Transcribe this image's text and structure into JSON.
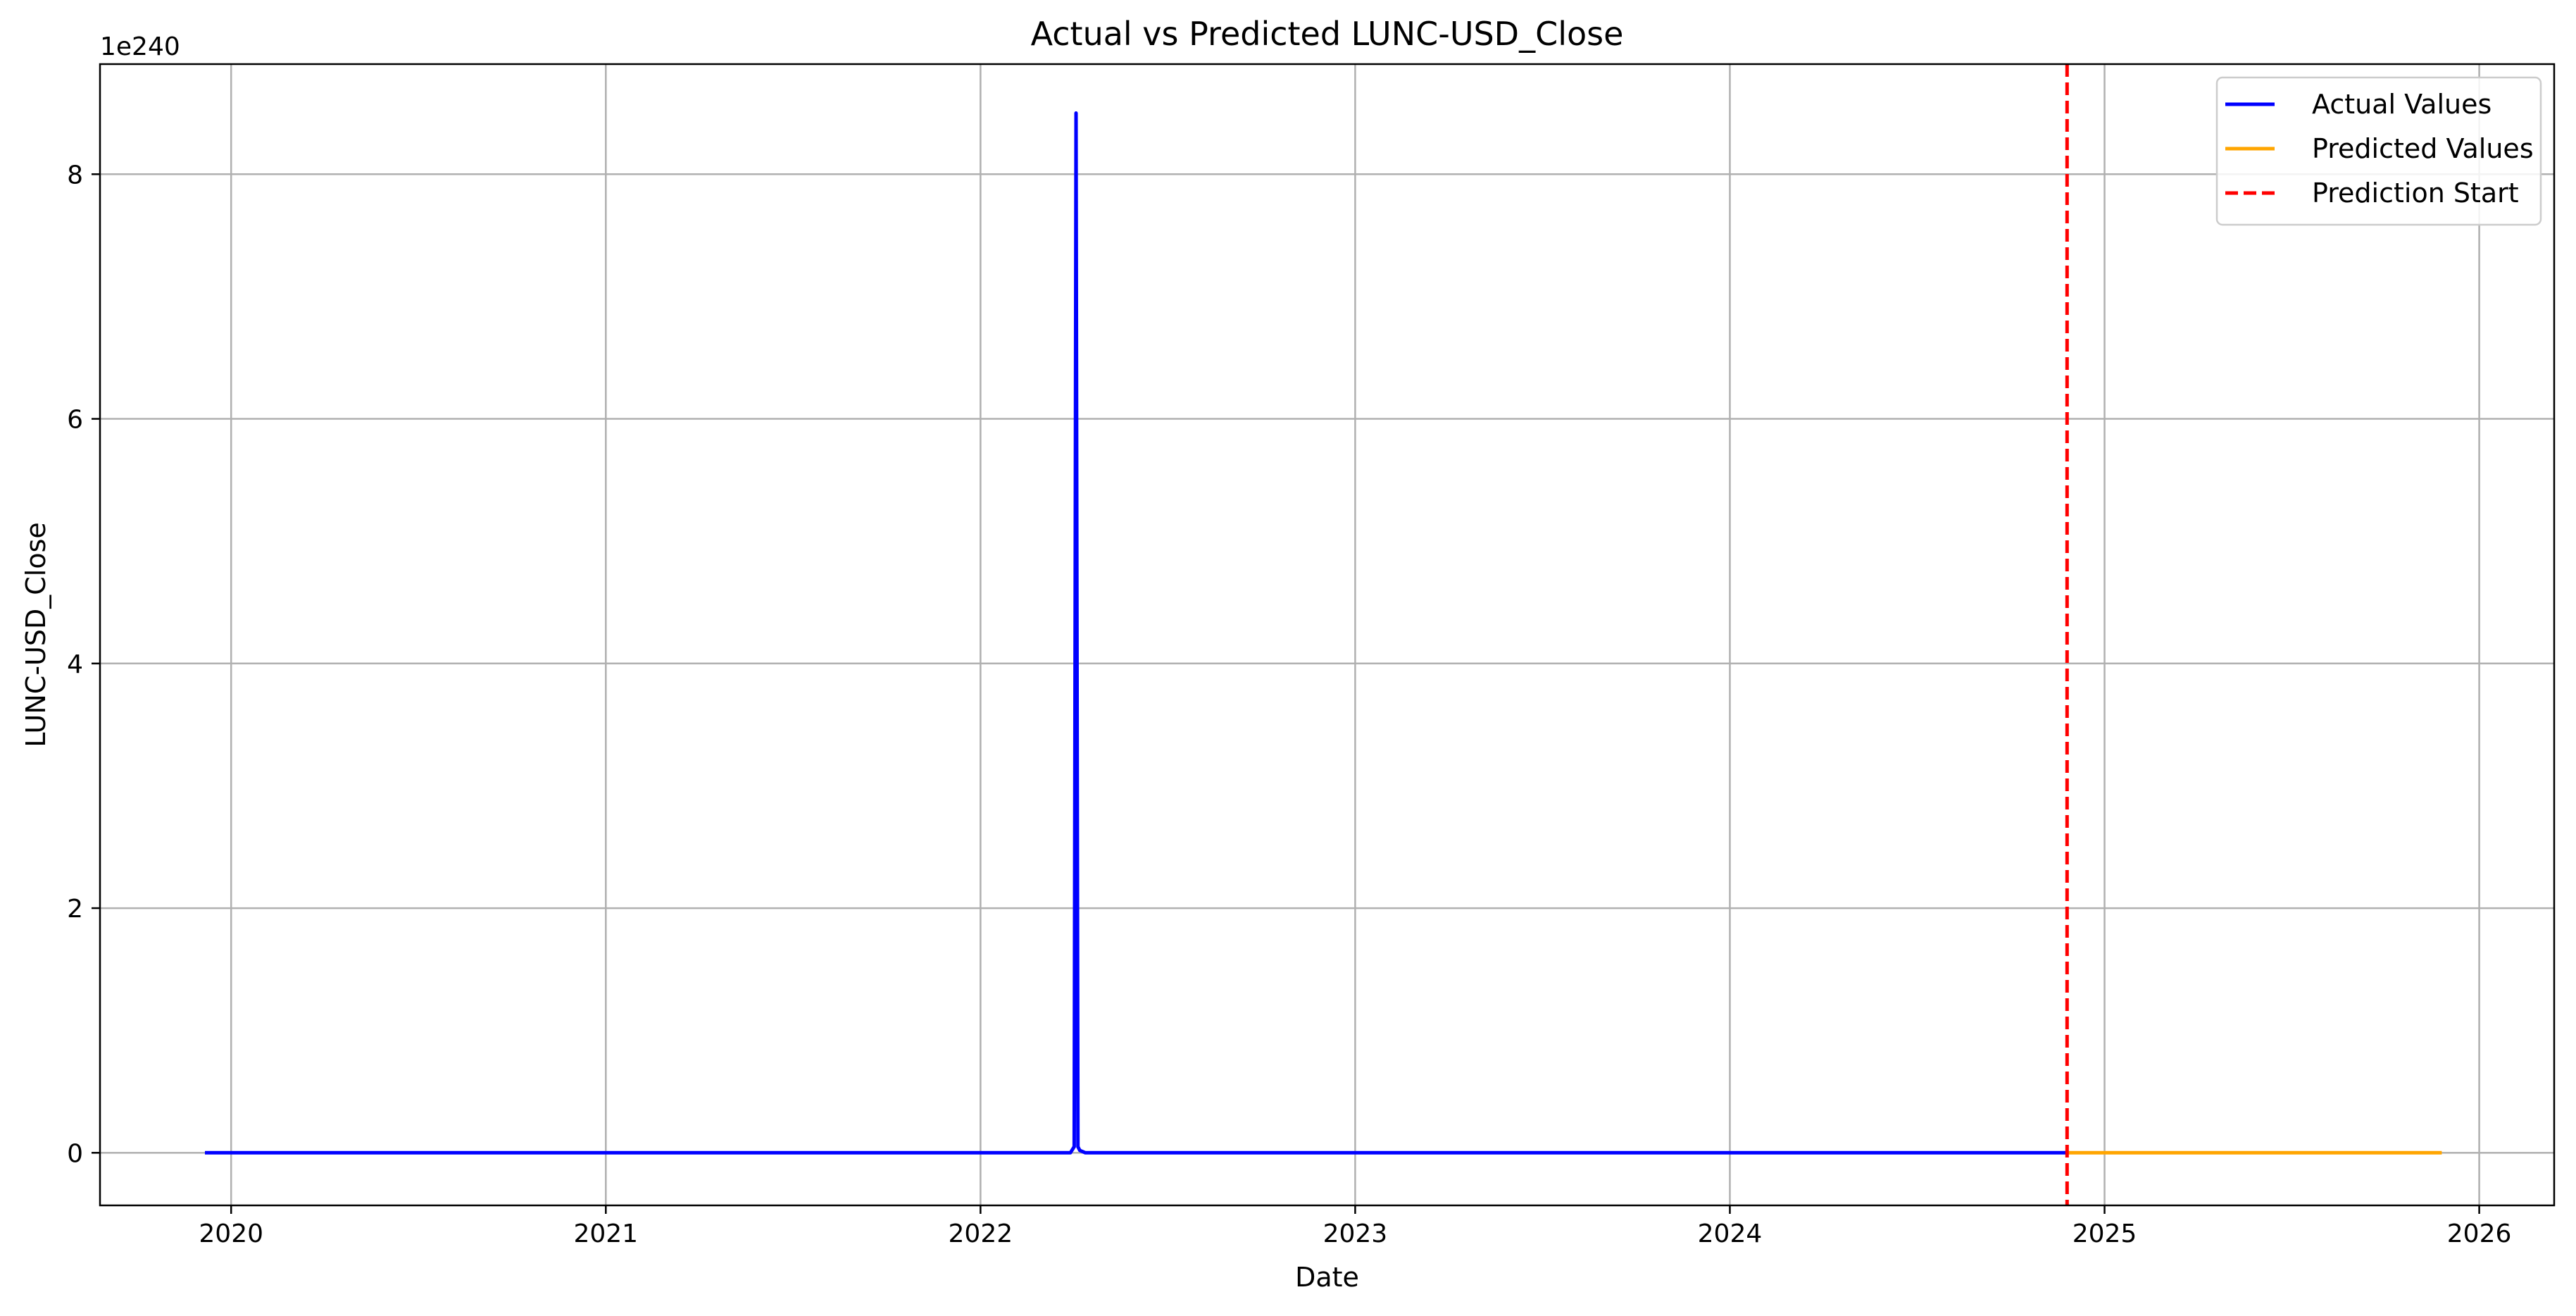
{
  "chart_data": {
    "type": "line",
    "title": "Actual vs Predicted LUNC-USD_Close",
    "xlabel": "Date",
    "ylabel": "LUNC-USD_Close",
    "y_scale_label": "1e240",
    "xlim": [
      2019.65,
      2026.2
    ],
    "ylim": [
      -0.43,
      8.9
    ],
    "x_ticks": [
      2020,
      2021,
      2022,
      2023,
      2024,
      2025,
      2026
    ],
    "x_tick_labels": [
      "2020",
      "2021",
      "2022",
      "2023",
      "2024",
      "2025",
      "2026"
    ],
    "y_ticks": [
      0,
      2,
      4,
      6,
      8
    ],
    "y_tick_labels": [
      "0",
      "2",
      "4",
      "6",
      "8"
    ],
    "grid": true,
    "legend_position": "top-right",
    "series": [
      {
        "name": "Actual Values",
        "color": "#0000ff",
        "style": "solid",
        "x": [
          2019.93,
          2022.24,
          2022.25,
          2022.255,
          2022.26,
          2022.265,
          2022.28,
          2024.9
        ],
        "y": [
          0,
          0,
          0.05,
          8.5,
          0.05,
          0.02,
          0,
          0
        ]
      },
      {
        "name": "Predicted Values",
        "color": "#ffa500",
        "style": "solid",
        "x": [
          2024.9,
          2025.9
        ],
        "y": [
          0,
          0
        ]
      }
    ],
    "vlines": [
      {
        "name": "Prediction Start",
        "x": 2024.9,
        "color": "#ff0000",
        "style": "dashed"
      }
    ]
  }
}
